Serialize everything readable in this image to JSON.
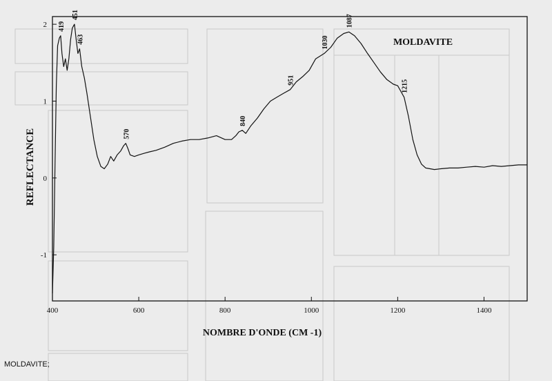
{
  "caption": "MOLDAVITE;",
  "chart_data": {
    "type": "line",
    "title": "MOLDAVITE",
    "xlabel": "NOMBRE D'ONDE (CM -1)",
    "ylabel": "REFLECTANCE",
    "xlim": [
      400,
      1500
    ],
    "ylim": [
      -1.6,
      2.1
    ],
    "xticks": [
      400,
      600,
      800,
      1000,
      1200,
      1400
    ],
    "yticks": [
      -1,
      0,
      1,
      2
    ],
    "series": [
      {
        "x": [
          400,
          403,
          406,
          409,
          412,
          416,
          419,
          422,
          426,
          430,
          434,
          438,
          442,
          446,
          451,
          455,
          459,
          463,
          468,
          474,
          480,
          488,
          496,
          504,
          512,
          520,
          528,
          535,
          542,
          550,
          558,
          565,
          570,
          575,
          580,
          590,
          600,
          612,
          625,
          640,
          660,
          680,
          700,
          720,
          740,
          760,
          780,
          800,
          815,
          825,
          832,
          840,
          848,
          860,
          875,
          890,
          905,
          920,
          935,
          951,
          965,
          980,
          995,
          1010,
          1030,
          1045,
          1060,
          1075,
          1087,
          1100,
          1115,
          1130,
          1145,
          1160,
          1175,
          1190,
          1200,
          1215,
          1225,
          1235,
          1245,
          1255,
          1265,
          1275,
          1285,
          1300,
          1320,
          1340,
          1360,
          1380,
          1400,
          1420,
          1440,
          1460,
          1480,
          1500
        ],
        "y": [
          -1.5,
          -0.9,
          0.2,
          1.2,
          1.72,
          1.82,
          1.85,
          1.62,
          1.45,
          1.55,
          1.4,
          1.55,
          1.8,
          1.95,
          2.0,
          1.8,
          1.62,
          1.68,
          1.45,
          1.3,
          1.1,
          0.8,
          0.5,
          0.28,
          0.15,
          0.12,
          0.18,
          0.28,
          0.22,
          0.3,
          0.35,
          0.42,
          0.45,
          0.38,
          0.3,
          0.28,
          0.3,
          0.32,
          0.34,
          0.36,
          0.4,
          0.45,
          0.48,
          0.5,
          0.5,
          0.52,
          0.55,
          0.5,
          0.5,
          0.55,
          0.6,
          0.62,
          0.58,
          0.68,
          0.78,
          0.9,
          1.0,
          1.05,
          1.1,
          1.15,
          1.25,
          1.32,
          1.4,
          1.55,
          1.62,
          1.7,
          1.82,
          1.88,
          1.9,
          1.85,
          1.75,
          1.62,
          1.5,
          1.38,
          1.28,
          1.22,
          1.2,
          1.05,
          0.8,
          0.5,
          0.3,
          0.18,
          0.13,
          0.12,
          0.11,
          0.12,
          0.13,
          0.13,
          0.14,
          0.15,
          0.14,
          0.16,
          0.15,
          0.16,
          0.17,
          0.17
        ]
      }
    ],
    "annotations": [
      {
        "label": "419",
        "x": 419,
        "y": 1.85
      },
      {
        "label": "451",
        "x": 451,
        "y": 2.0
      },
      {
        "label": "463",
        "x": 463,
        "y": 1.68
      },
      {
        "label": "570",
        "x": 570,
        "y": 0.45
      },
      {
        "label": "840",
        "x": 840,
        "y": 0.62
      },
      {
        "label": "951",
        "x": 951,
        "y": 1.15
      },
      {
        "label": "1030",
        "x": 1030,
        "y": 1.62
      },
      {
        "label": "1087",
        "x": 1087,
        "y": 1.9
      },
      {
        "label": "1215",
        "x": 1215,
        "y": 1.05
      }
    ],
    "grid": false,
    "line_color": "#111111"
  }
}
